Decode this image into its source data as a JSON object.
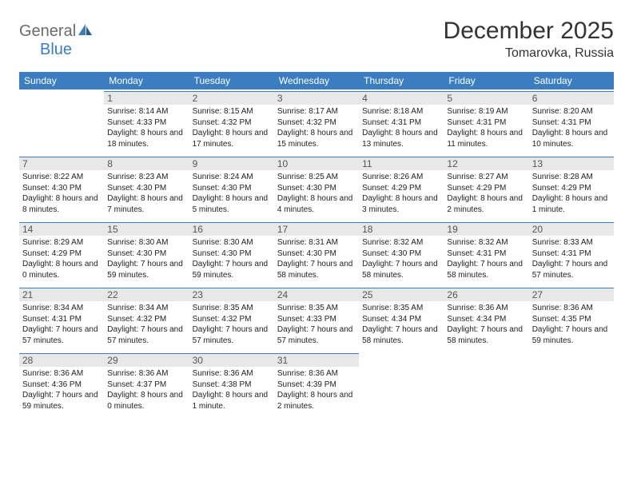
{
  "logo": {
    "general": "General",
    "blue": "Blue"
  },
  "title": "December 2025",
  "location": "Tomarovka, Russia",
  "colors": {
    "header_bg": "#3a7ec1",
    "header_text": "#ffffff",
    "daynum_bg": "#e8e8e8",
    "daynum_border": "#3a7ec1",
    "text": "#222222",
    "logo_gray": "#6b6b6b",
    "logo_blue": "#3a7ec1"
  },
  "day_headers": [
    "Sunday",
    "Monday",
    "Tuesday",
    "Wednesday",
    "Thursday",
    "Friday",
    "Saturday"
  ],
  "weeks": [
    [
      null,
      {
        "n": "1",
        "sr": "8:14 AM",
        "ss": "4:33 PM",
        "dl": "8 hours and 18 minutes."
      },
      {
        "n": "2",
        "sr": "8:15 AM",
        "ss": "4:32 PM",
        "dl": "8 hours and 17 minutes."
      },
      {
        "n": "3",
        "sr": "8:17 AM",
        "ss": "4:32 PM",
        "dl": "8 hours and 15 minutes."
      },
      {
        "n": "4",
        "sr": "8:18 AM",
        "ss": "4:31 PM",
        "dl": "8 hours and 13 minutes."
      },
      {
        "n": "5",
        "sr": "8:19 AM",
        "ss": "4:31 PM",
        "dl": "8 hours and 11 minutes."
      },
      {
        "n": "6",
        "sr": "8:20 AM",
        "ss": "4:31 PM",
        "dl": "8 hours and 10 minutes."
      }
    ],
    [
      {
        "n": "7",
        "sr": "8:22 AM",
        "ss": "4:30 PM",
        "dl": "8 hours and 8 minutes."
      },
      {
        "n": "8",
        "sr": "8:23 AM",
        "ss": "4:30 PM",
        "dl": "8 hours and 7 minutes."
      },
      {
        "n": "9",
        "sr": "8:24 AM",
        "ss": "4:30 PM",
        "dl": "8 hours and 5 minutes."
      },
      {
        "n": "10",
        "sr": "8:25 AM",
        "ss": "4:30 PM",
        "dl": "8 hours and 4 minutes."
      },
      {
        "n": "11",
        "sr": "8:26 AM",
        "ss": "4:29 PM",
        "dl": "8 hours and 3 minutes."
      },
      {
        "n": "12",
        "sr": "8:27 AM",
        "ss": "4:29 PM",
        "dl": "8 hours and 2 minutes."
      },
      {
        "n": "13",
        "sr": "8:28 AM",
        "ss": "4:29 PM",
        "dl": "8 hours and 1 minute."
      }
    ],
    [
      {
        "n": "14",
        "sr": "8:29 AM",
        "ss": "4:29 PM",
        "dl": "8 hours and 0 minutes."
      },
      {
        "n": "15",
        "sr": "8:30 AM",
        "ss": "4:30 PM",
        "dl": "7 hours and 59 minutes."
      },
      {
        "n": "16",
        "sr": "8:30 AM",
        "ss": "4:30 PM",
        "dl": "7 hours and 59 minutes."
      },
      {
        "n": "17",
        "sr": "8:31 AM",
        "ss": "4:30 PM",
        "dl": "7 hours and 58 minutes."
      },
      {
        "n": "18",
        "sr": "8:32 AM",
        "ss": "4:30 PM",
        "dl": "7 hours and 58 minutes."
      },
      {
        "n": "19",
        "sr": "8:32 AM",
        "ss": "4:31 PM",
        "dl": "7 hours and 58 minutes."
      },
      {
        "n": "20",
        "sr": "8:33 AM",
        "ss": "4:31 PM",
        "dl": "7 hours and 57 minutes."
      }
    ],
    [
      {
        "n": "21",
        "sr": "8:34 AM",
        "ss": "4:31 PM",
        "dl": "7 hours and 57 minutes."
      },
      {
        "n": "22",
        "sr": "8:34 AM",
        "ss": "4:32 PM",
        "dl": "7 hours and 57 minutes."
      },
      {
        "n": "23",
        "sr": "8:35 AM",
        "ss": "4:32 PM",
        "dl": "7 hours and 57 minutes."
      },
      {
        "n": "24",
        "sr": "8:35 AM",
        "ss": "4:33 PM",
        "dl": "7 hours and 57 minutes."
      },
      {
        "n": "25",
        "sr": "8:35 AM",
        "ss": "4:34 PM",
        "dl": "7 hours and 58 minutes."
      },
      {
        "n": "26",
        "sr": "8:36 AM",
        "ss": "4:34 PM",
        "dl": "7 hours and 58 minutes."
      },
      {
        "n": "27",
        "sr": "8:36 AM",
        "ss": "4:35 PM",
        "dl": "7 hours and 59 minutes."
      }
    ],
    [
      {
        "n": "28",
        "sr": "8:36 AM",
        "ss": "4:36 PM",
        "dl": "7 hours and 59 minutes."
      },
      {
        "n": "29",
        "sr": "8:36 AM",
        "ss": "4:37 PM",
        "dl": "8 hours and 0 minutes."
      },
      {
        "n": "30",
        "sr": "8:36 AM",
        "ss": "4:38 PM",
        "dl": "8 hours and 1 minute."
      },
      {
        "n": "31",
        "sr": "8:36 AM",
        "ss": "4:39 PM",
        "dl": "8 hours and 2 minutes."
      },
      null,
      null,
      null
    ]
  ],
  "labels": {
    "sunrise": "Sunrise:",
    "sunset": "Sunset:",
    "daylight": "Daylight:"
  }
}
